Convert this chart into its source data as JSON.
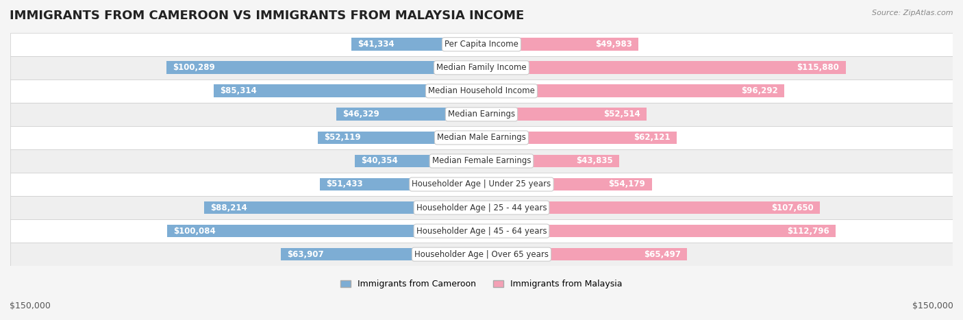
{
  "title": "IMMIGRANTS FROM CAMEROON VS IMMIGRANTS FROM MALAYSIA INCOME",
  "source": "Source: ZipAtlas.com",
  "categories": [
    "Per Capita Income",
    "Median Family Income",
    "Median Household Income",
    "Median Earnings",
    "Median Male Earnings",
    "Median Female Earnings",
    "Householder Age | Under 25 years",
    "Householder Age | 25 - 44 years",
    "Householder Age | 45 - 64 years",
    "Householder Age | Over 65 years"
  ],
  "cameroon_values": [
    41334,
    100289,
    85314,
    46329,
    52119,
    40354,
    51433,
    88214,
    100084,
    63907
  ],
  "malaysia_values": [
    49983,
    115880,
    96292,
    52514,
    62121,
    43835,
    54179,
    107650,
    112796,
    65497
  ],
  "cameroon_labels": [
    "$41,334",
    "$100,289",
    "$85,314",
    "$46,329",
    "$52,119",
    "$40,354",
    "$51,433",
    "$88,214",
    "$100,084",
    "$63,907"
  ],
  "malaysia_labels": [
    "$49,983",
    "$115,880",
    "$96,292",
    "$52,514",
    "$62,121",
    "$43,835",
    "$54,179",
    "$107,650",
    "$112,796",
    "$65,497"
  ],
  "cameroon_color": "#7dadd4",
  "malaysia_color": "#f4a0b5",
  "cameroon_label_color_inside": "#ffffff",
  "cameroon_label_color_outside": "#555555",
  "malaysia_label_color_inside": "#ffffff",
  "malaysia_label_color_outside": "#555555",
  "max_value": 150000,
  "bg_color": "#f5f5f5",
  "row_bg_even": "#ffffff",
  "row_bg_odd": "#f0f0f0",
  "legend_cameroon": "Immigrants from Cameroon",
  "legend_malaysia": "Immigrants from Malaysia",
  "xlabel_left": "$150,000",
  "xlabel_right": "$150,000",
  "title_fontsize": 13,
  "label_fontsize": 8.5,
  "category_fontsize": 8.5,
  "axis_fontsize": 9
}
